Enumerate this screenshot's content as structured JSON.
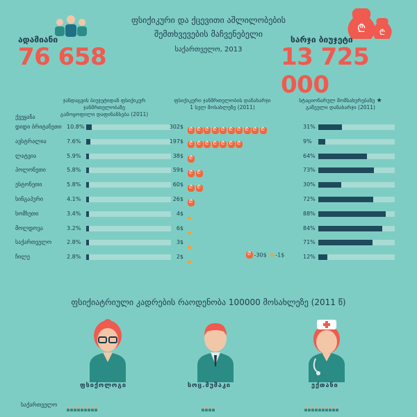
{
  "header": {
    "left_label": "ადამიანი",
    "left_value": "76 658",
    "title_line1": "ფსიქიკური და ქცევითი აშლილობების",
    "title_line2": "შემთხვევების მაჩვენებელი",
    "subtitle": "საქართველო, 2013",
    "right_label": "სარჯი ბიუჯეტი",
    "right_value": "13 725 000"
  },
  "columns": {
    "country": "ქვეყანა",
    "col1_line1": "ჯანდაცვის ბიუჯეტიდან ფსიქიკურ ჯანმრთელობაზე",
    "col1_line2": "გამოყოფილი დაფინანსება (2011)",
    "col2_line1": "ფსიქიკური ჯანმრთელობის დანახარჯი",
    "col2_line2": "1 სულ მოსახლეზე (2011)",
    "col3_line1": "სტაციონარულ მომსახურებაზე",
    "col3_line2": "გაწეული დანახარჯი (2011)",
    "col3_star": "★"
  },
  "rows": [
    {
      "country": "დიდი ბრიტანეთი",
      "pct": "10.8%",
      "pct_val": 10.8,
      "money": "302$",
      "bags": 10,
      "stat": "31%",
      "stat_val": 31
    },
    {
      "country": "ავსტრალია",
      "pct": "7.6%",
      "pct_val": 7.6,
      "money": "197$",
      "bags": 7,
      "stat": "9%",
      "stat_val": 9
    },
    {
      "country": "ლატვია",
      "pct": "5.9%",
      "pct_val": 5.9,
      "money": "38$",
      "bags": 1,
      "stat": "64%",
      "stat_val": 64
    },
    {
      "country": "პოლონეთი",
      "pct": "5.8%",
      "pct_val": 5.8,
      "money": "59$",
      "bags": 2,
      "stat": "73%",
      "stat_val": 73
    },
    {
      "country": "ესტონეთი",
      "pct": "5.8%",
      "pct_val": 5.8,
      "money": "60$",
      "bags": 2,
      "stat": "30%",
      "stat_val": 30
    },
    {
      "country": "სინგაპური",
      "pct": "4.1%",
      "pct_val": 4.1,
      "money": "26$",
      "bags": 1,
      "stat": "72%",
      "stat_val": 72
    },
    {
      "country": "სომხეთი",
      "pct": "3.4%",
      "pct_val": 3.4,
      "money": "4$",
      "bags": 0,
      "stat": "88%",
      "stat_val": 88
    },
    {
      "country": "მოლდოვა",
      "pct": "3.2%",
      "pct_val": 3.2,
      "money": "6$",
      "bags": 0,
      "stat": "84%",
      "stat_val": 84
    },
    {
      "country": "საქართველო",
      "pct": "2.8%",
      "pct_val": 2.8,
      "money": "3$",
      "bags": 0,
      "stat": "71%",
      "stat_val": 71
    },
    {
      "country": "ჩილე",
      "pct": "2.8%",
      "pct_val": 2.8,
      "money": "2$",
      "bags": 0,
      "stat": "12%",
      "stat_val": 12
    }
  ],
  "legend": {
    "bag_label": "-30$",
    "dash_label": "-1$"
  },
  "section2": {
    "title": "ფსიქიატრიული კადრების რაოდენობა 100000 მოსახლეზე (2011 წ)",
    "roles": [
      "ფსიქოლოგი",
      "სოც.მუშაკი",
      "ექთანი"
    ],
    "row_label": "საქართველო",
    "role_counts": [
      9,
      4,
      10
    ]
  },
  "colors": {
    "background": "#7ecdc4",
    "accent": "#f05a4f",
    "bar": "#1f4a5c",
    "bag": "#f0683c"
  }
}
